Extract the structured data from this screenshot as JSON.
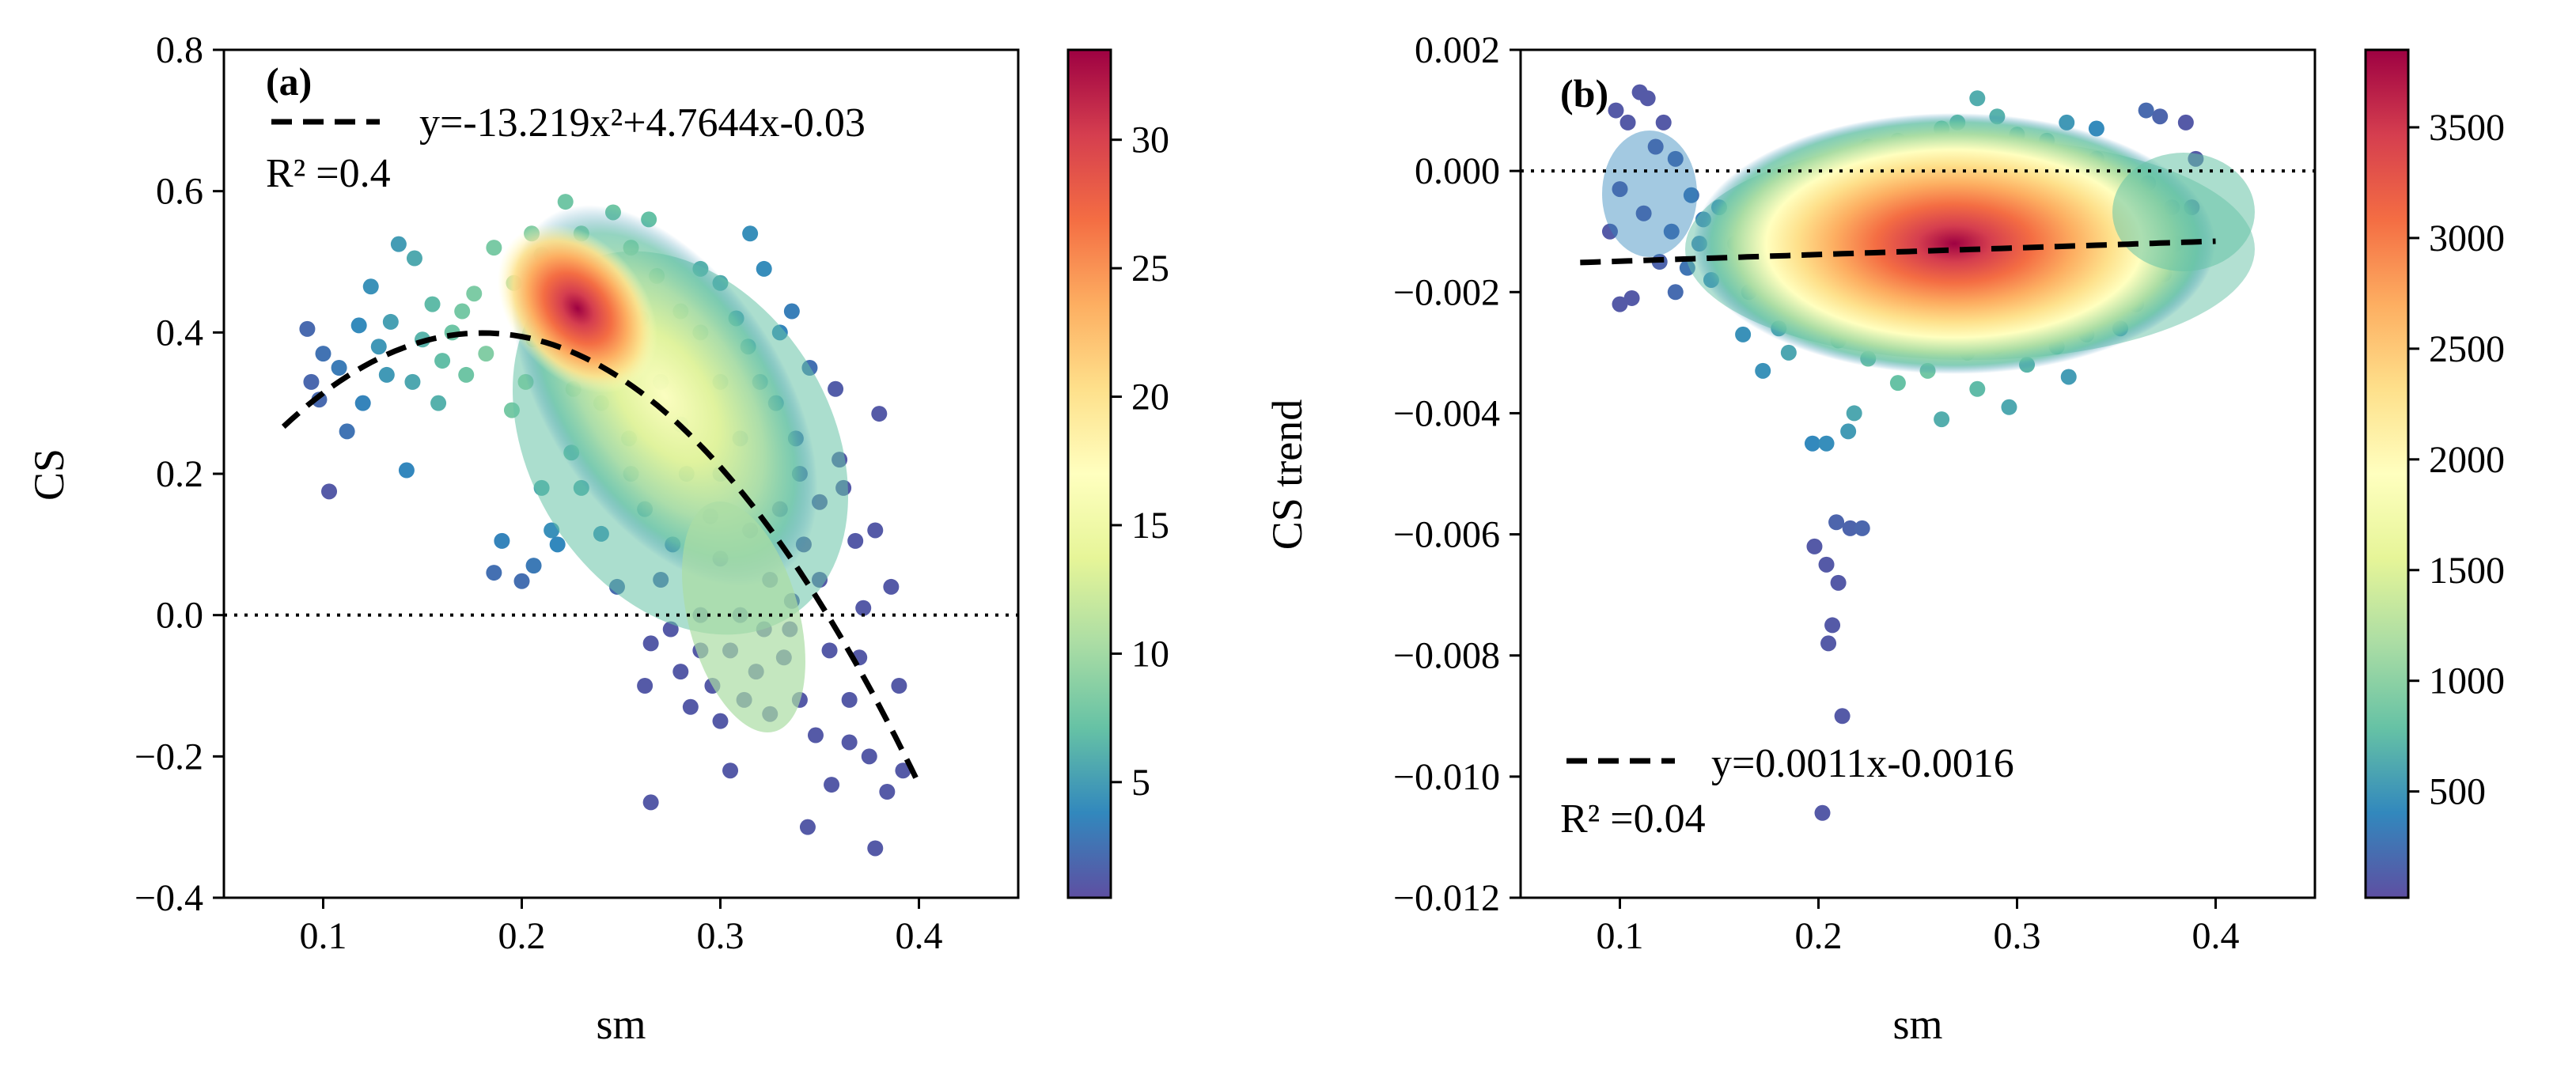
{
  "chart_data": [
    {
      "type": "scatter",
      "panel_label": "(a)",
      "xlabel": "sm",
      "ylabel": "CS",
      "xlim": [
        0.05,
        0.45
      ],
      "ylim": [
        -0.4,
        0.8
      ],
      "xticks": [
        0.1,
        0.2,
        0.3,
        0.4
      ],
      "xtick_labels": [
        "0.1",
        "0.2",
        "0.3",
        "0.4"
      ],
      "yticks": [
        0.8,
        0.6,
        0.4,
        0.2,
        0.0,
        -0.2,
        -0.4
      ],
      "ytick_labels": [
        "0.8",
        "0.6",
        "0.4",
        "0.2",
        "0.0",
        "−0.2",
        "−0.4"
      ],
      "fit": {
        "kind": "quadratic",
        "coefficients": [
          -13.219,
          4.7644,
          -0.03
        ],
        "x_range": [
          0.08,
          0.4
        ],
        "equation_label": "y=-13.219x²+4.7644x-0.03",
        "r2_label": "R² =0.4"
      },
      "reference_line_y": 0.0,
      "density_peak": {
        "x": 0.222,
        "y": 0.42
      },
      "colorbar": {
        "range": [
          0.5,
          33.5
        ],
        "ticks": [
          5,
          10,
          15,
          20,
          25,
          30
        ],
        "tick_labels": [
          "5",
          "10",
          "15",
          "20",
          "25",
          "30"
        ],
        "colormap": "Spectral_r"
      },
      "points": [
        [
          0.103,
          0.175
        ],
        [
          0.142,
          0.205
        ],
        [
          0.138,
          0.525
        ],
        [
          0.146,
          0.505
        ],
        [
          0.092,
          0.405
        ],
        [
          0.098,
          0.305
        ],
        [
          0.12,
          0.3
        ],
        [
          0.108,
          0.35
        ],
        [
          0.128,
          0.38
        ],
        [
          0.16,
          0.36
        ],
        [
          0.17,
          0.43
        ],
        [
          0.176,
          0.455
        ],
        [
          0.19,
          0.105
        ],
        [
          0.186,
          0.06
        ],
        [
          0.2,
          0.048
        ],
        [
          0.206,
          0.07
        ],
        [
          0.215,
          0.12
        ],
        [
          0.24,
          0.115
        ],
        [
          0.254,
          0.25
        ],
        [
          0.262,
          -0.1
        ],
        [
          0.265,
          -0.265
        ],
        [
          0.28,
          -0.08
        ],
        [
          0.3,
          -0.15
        ],
        [
          0.305,
          -0.22
        ],
        [
          0.325,
          -0.14
        ],
        [
          0.34,
          -0.12
        ],
        [
          0.35,
          0.05
        ],
        [
          0.355,
          -0.05
        ],
        [
          0.358,
          0.32
        ],
        [
          0.368,
          0.105
        ],
        [
          0.372,
          0.01
        ],
        [
          0.375,
          -0.2
        ],
        [
          0.378,
          -0.33
        ],
        [
          0.365,
          -0.18
        ],
        [
          0.344,
          -0.3
        ],
        [
          0.384,
          -0.25
        ],
        [
          0.39,
          -0.1
        ],
        [
          0.392,
          -0.22
        ],
        [
          0.38,
          0.285
        ],
        [
          0.362,
          0.18
        ],
        [
          0.336,
          0.43
        ],
        [
          0.322,
          0.49
        ],
        [
          0.315,
          0.54
        ],
        [
          0.29,
          0.49
        ],
        [
          0.264,
          0.56
        ],
        [
          0.246,
          0.57
        ],
        [
          0.222,
          0.585
        ],
        [
          0.205,
          0.54
        ],
        [
          0.186,
          0.52
        ],
        [
          0.196,
          0.47
        ],
        [
          0.21,
          0.51
        ],
        [
          0.23,
          0.54
        ],
        [
          0.255,
          0.52
        ],
        [
          0.3,
          0.47
        ],
        [
          0.33,
          0.4
        ],
        [
          0.345,
          0.35
        ],
        [
          0.338,
          0.25
        ],
        [
          0.33,
          0.15
        ],
        [
          0.325,
          0.05
        ],
        [
          0.31,
          0.0
        ],
        [
          0.29,
          -0.05
        ],
        [
          0.275,
          -0.02
        ],
        [
          0.27,
          0.05
        ],
        [
          0.3,
          0.08
        ],
        [
          0.285,
          -0.13
        ],
        [
          0.318,
          -0.08
        ],
        [
          0.335,
          -0.02
        ],
        [
          0.348,
          -0.17
        ],
        [
          0.356,
          -0.24
        ],
        [
          0.365,
          -0.12
        ],
        [
          0.37,
          -0.06
        ],
        [
          0.378,
          0.12
        ],
        [
          0.386,
          0.04
        ],
        [
          0.36,
          0.22
        ],
        [
          0.35,
          0.16
        ],
        [
          0.342,
          0.1
        ],
        [
          0.23,
          0.18
        ],
        [
          0.225,
          0.23
        ],
        [
          0.218,
          0.1
        ],
        [
          0.21,
          0.18
        ],
        [
          0.195,
          0.29
        ],
        [
          0.182,
          0.37
        ],
        [
          0.165,
          0.4
        ],
        [
          0.155,
          0.44
        ],
        [
          0.15,
          0.39
        ],
        [
          0.132,
          0.34
        ],
        [
          0.118,
          0.41
        ],
        [
          0.112,
          0.26
        ],
        [
          0.1,
          0.37
        ],
        [
          0.094,
          0.33
        ],
        [
          0.124,
          0.465
        ],
        [
          0.134,
          0.415
        ],
        [
          0.145,
          0.33
        ],
        [
          0.158,
          0.3
        ],
        [
          0.172,
          0.34
        ],
        [
          0.24,
          0.3
        ],
        [
          0.25,
          0.36
        ],
        [
          0.26,
          0.42
        ],
        [
          0.27,
          0.33
        ],
        [
          0.28,
          0.27
        ],
        [
          0.29,
          0.4
        ],
        [
          0.3,
          0.33
        ],
        [
          0.31,
          0.25
        ],
        [
          0.32,
          0.33
        ],
        [
          0.308,
          0.42
        ],
        [
          0.283,
          0.2
        ],
        [
          0.295,
          0.14
        ],
        [
          0.262,
          0.15
        ],
        [
          0.248,
          0.04
        ],
        [
          0.276,
          0.1
        ],
        [
          0.29,
          0.0
        ],
        [
          0.305,
          -0.05
        ],
        [
          0.296,
          -0.1
        ],
        [
          0.312,
          -0.12
        ],
        [
          0.265,
          -0.04
        ],
        [
          0.255,
          0.2
        ],
        [
          0.238,
          0.41
        ],
        [
          0.214,
          0.45
        ],
        [
          0.206,
          0.39
        ],
        [
          0.202,
          0.33
        ],
        [
          0.226,
          0.32
        ],
        [
          0.236,
          0.48
        ],
        [
          0.248,
          0.45
        ],
        [
          0.268,
          0.48
        ],
        [
          0.28,
          0.43
        ],
        [
          0.314,
          0.38
        ],
        [
          0.328,
          0.3
        ],
        [
          0.34,
          0.2
        ],
        [
          0.336,
          0.02
        ],
        [
          0.332,
          -0.06
        ],
        [
          0.3,
          0.2
        ],
        [
          0.315,
          0.12
        ],
        [
          0.322,
          -0.02
        ]
      ]
    },
    {
      "type": "scatter",
      "panel_label": "(b)",
      "xlabel": "sm",
      "ylabel": "CS trend",
      "xlim": [
        0.05,
        0.45
      ],
      "ylim": [
        -0.012,
        0.002
      ],
      "xticks": [
        0.1,
        0.2,
        0.3,
        0.4
      ],
      "xtick_labels": [
        "0.1",
        "0.2",
        "0.3",
        "0.4"
      ],
      "yticks": [
        0.002,
        0.0,
        -0.002,
        -0.004,
        -0.006,
        -0.008,
        -0.01,
        -0.012
      ],
      "ytick_labels": [
        "0.002",
        "0.000",
        "−0.002",
        "−0.004",
        "−0.006",
        "−0.008",
        "−0.010",
        "−0.012"
      ],
      "fit": {
        "kind": "linear",
        "coefficients": [
          0.0011,
          -0.0016
        ],
        "x_range": [
          0.08,
          0.4
        ],
        "equation_label": "y=0.0011x-0.0016",
        "r2_label": "R² =0.04"
      },
      "reference_line_y": 0.0,
      "density_peak": {
        "x": 0.255,
        "y": -0.0014
      },
      "colorbar": {
        "range": [
          20,
          3850
        ],
        "ticks": [
          500,
          1000,
          1500,
          2000,
          2500,
          3000,
          3500
        ],
        "tick_labels": [
          "500",
          "1000",
          "1500",
          "2000",
          "2500",
          "3000",
          "3500"
        ],
        "colormap": "Spectral_r"
      },
      "points": [
        [
          0.202,
          -0.0106
        ],
        [
          0.212,
          -0.009
        ],
        [
          0.205,
          -0.0078
        ],
        [
          0.207,
          -0.0075
        ],
        [
          0.21,
          -0.0068
        ],
        [
          0.209,
          -0.0058
        ],
        [
          0.216,
          -0.0059
        ],
        [
          0.222,
          -0.0059
        ],
        [
          0.198,
          -0.0062
        ],
        [
          0.204,
          -0.0065
        ],
        [
          0.197,
          -0.0045
        ],
        [
          0.204,
          -0.0045
        ],
        [
          0.215,
          -0.0043
        ],
        [
          0.218,
          -0.004
        ],
        [
          0.262,
          -0.0041
        ],
        [
          0.296,
          -0.0039
        ],
        [
          0.326,
          -0.0034
        ],
        [
          0.28,
          -0.0036
        ],
        [
          0.172,
          -0.0033
        ],
        [
          0.185,
          -0.003
        ],
        [
          0.18,
          -0.0026
        ],
        [
          0.1,
          -0.0022
        ],
        [
          0.106,
          -0.0021
        ],
        [
          0.11,
          0.0013
        ],
        [
          0.114,
          0.0012
        ],
        [
          0.098,
          0.001
        ],
        [
          0.104,
          0.0008
        ],
        [
          0.122,
          0.0008
        ],
        [
          0.118,
          0.0004
        ],
        [
          0.128,
          0.0002
        ],
        [
          0.136,
          -0.0004
        ],
        [
          0.142,
          -0.0008
        ],
        [
          0.15,
          -0.0006
        ],
        [
          0.14,
          -0.0012
        ],
        [
          0.134,
          -0.0016
        ],
        [
          0.12,
          -0.0015
        ],
        [
          0.095,
          -0.001
        ],
        [
          0.1,
          -0.0003
        ],
        [
          0.112,
          -0.0007
        ],
        [
          0.126,
          -0.001
        ],
        [
          0.158,
          -0.0012
        ],
        [
          0.165,
          -0.002
        ],
        [
          0.17,
          -0.0008
        ],
        [
          0.176,
          -0.0015
        ],
        [
          0.182,
          -0.0005
        ],
        [
          0.28,
          0.0012
        ],
        [
          0.27,
          0.0008
        ],
        [
          0.29,
          0.0009
        ],
        [
          0.3,
          0.0006
        ],
        [
          0.315,
          0.0005
        ],
        [
          0.325,
          0.0008
        ],
        [
          0.34,
          0.0007
        ],
        [
          0.365,
          0.001
        ],
        [
          0.372,
          0.0009
        ],
        [
          0.385,
          0.0008
        ],
        [
          0.39,
          0.0002
        ],
        [
          0.388,
          -0.0006
        ],
        [
          0.38,
          -0.0012
        ],
        [
          0.374,
          -0.0017
        ],
        [
          0.36,
          -0.0022
        ],
        [
          0.352,
          -0.0026
        ],
        [
          0.335,
          -0.0027
        ],
        [
          0.32,
          -0.0029
        ],
        [
          0.305,
          -0.0032
        ],
        [
          0.29,
          -0.0029
        ],
        [
          0.275,
          -0.003
        ],
        [
          0.255,
          -0.0033
        ],
        [
          0.24,
          -0.0035
        ],
        [
          0.225,
          -0.0031
        ],
        [
          0.21,
          -0.0028
        ],
        [
          0.2,
          -0.0024
        ],
        [
          0.195,
          -0.0016
        ],
        [
          0.192,
          -0.0008
        ],
        [
          0.198,
          -0.0002
        ],
        [
          0.21,
          0.0002
        ],
        [
          0.225,
          0.0004
        ],
        [
          0.24,
          0.0005
        ],
        [
          0.255,
          0.0003
        ],
        [
          0.262,
          0.0007
        ],
        [
          0.232,
          -0.0022
        ],
        [
          0.25,
          -0.0024
        ],
        [
          0.268,
          -0.0023
        ],
        [
          0.3,
          -0.0023
        ],
        [
          0.33,
          -0.0018
        ],
        [
          0.345,
          -0.0012
        ],
        [
          0.35,
          -0.0004
        ],
        [
          0.34,
          0.0002
        ],
        [
          0.322,
          -0.0001
        ],
        [
          0.3,
          0.0002
        ],
        [
          0.278,
          -0.0002
        ],
        [
          0.205,
          -0.001
        ],
        [
          0.212,
          -0.0018
        ],
        [
          0.218,
          -0.0005
        ],
        [
          0.23,
          -0.0015
        ],
        [
          0.246,
          -0.0007
        ],
        [
          0.262,
          -0.0013
        ],
        [
          0.284,
          -0.0018
        ],
        [
          0.296,
          -0.001
        ],
        [
          0.312,
          -0.0015
        ],
        [
          0.328,
          -0.0008
        ],
        [
          0.366,
          -0.0002
        ],
        [
          0.378,
          -0.0006
        ],
        [
          0.364,
          -0.001
        ],
        [
          0.356,
          -0.0016
        ],
        [
          0.128,
          -0.002
        ],
        [
          0.146,
          -0.0018
        ],
        [
          0.162,
          -0.0027
        ],
        [
          0.188,
          -0.0019
        ]
      ]
    }
  ]
}
